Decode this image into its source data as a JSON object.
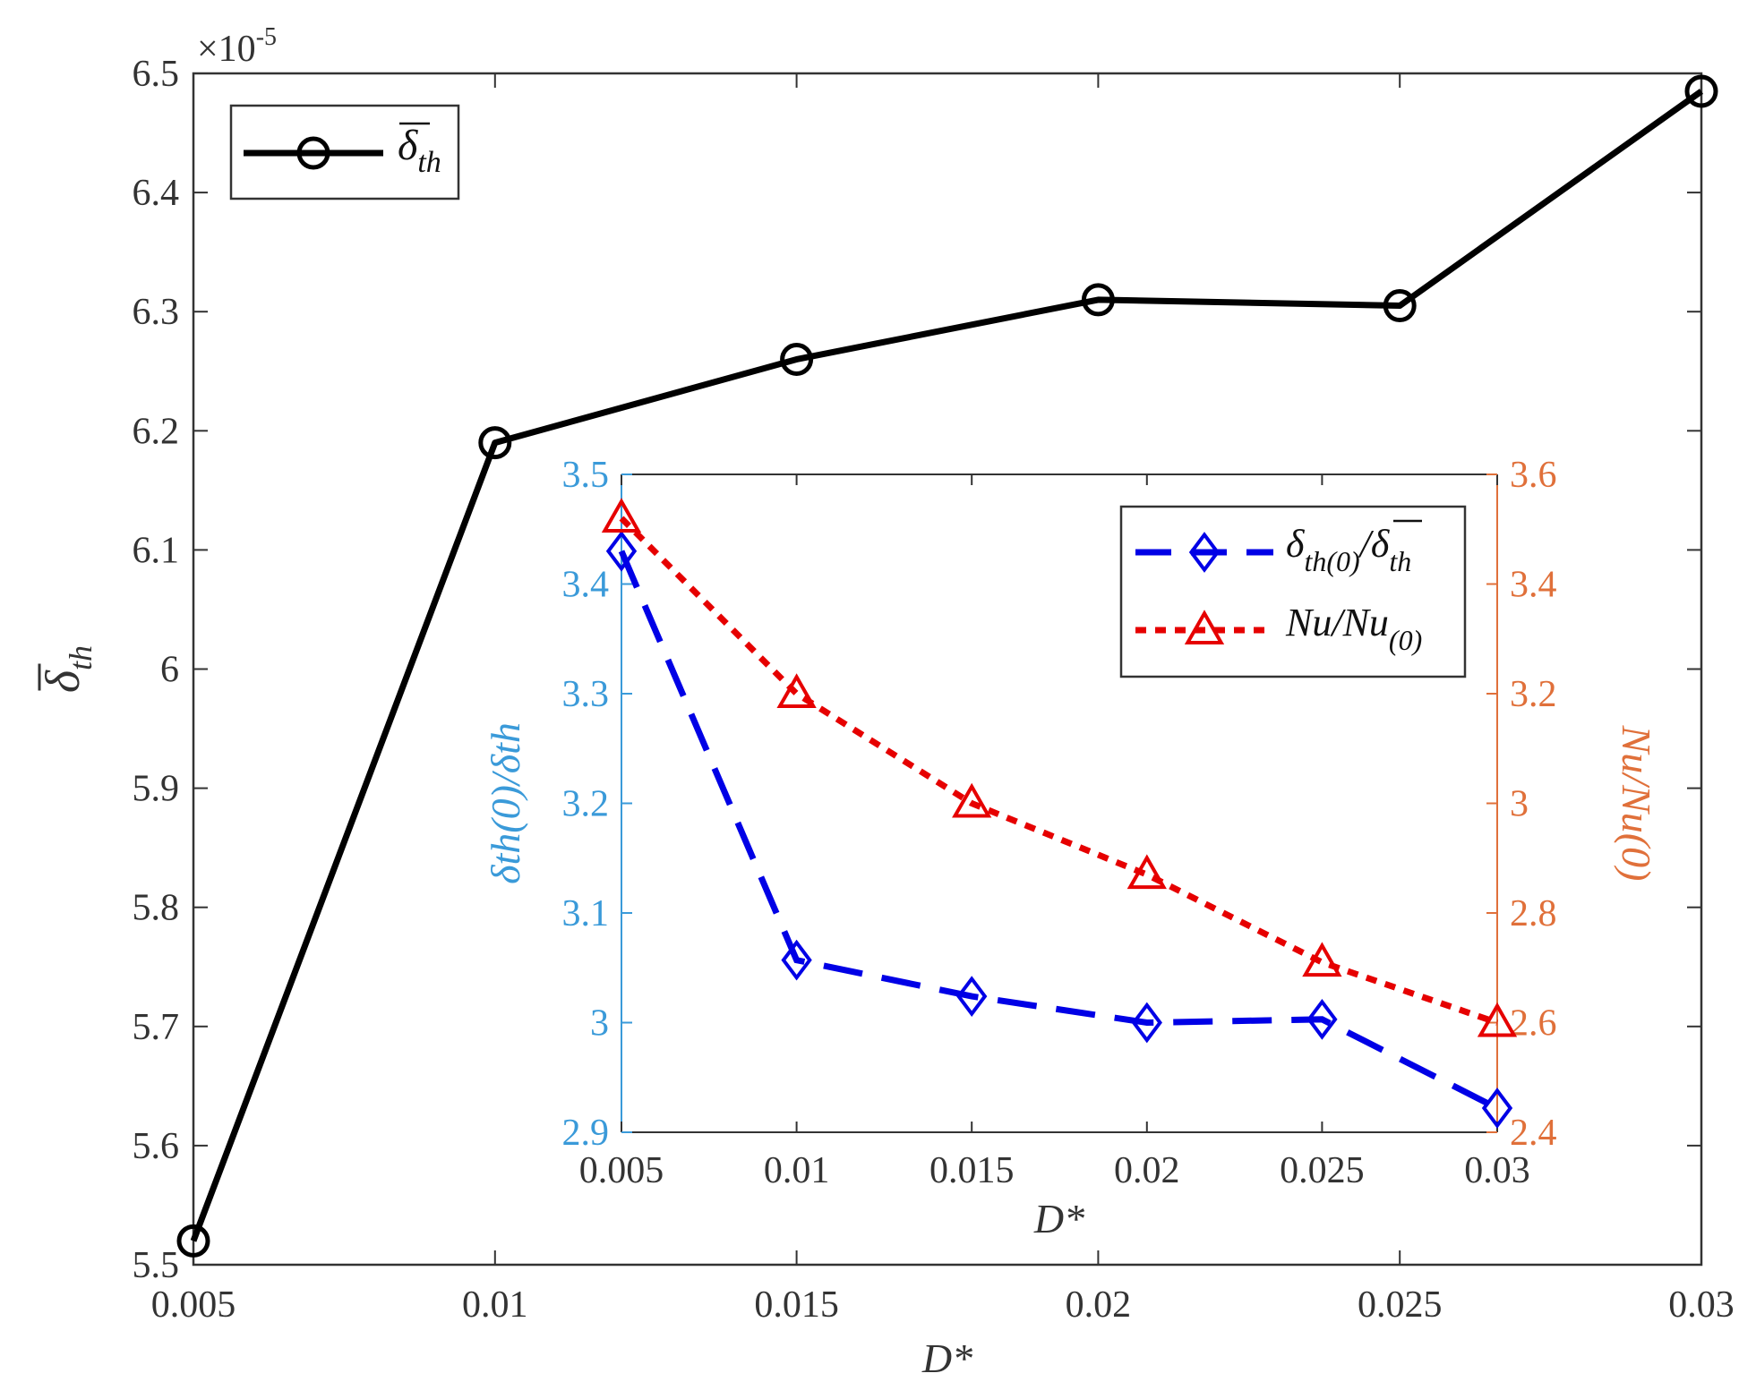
{
  "chart_data": [
    {
      "type": "line",
      "name": "main",
      "x": [
        0.005,
        0.01,
        0.015,
        0.02,
        0.025,
        0.03
      ],
      "xlim": [
        0.005,
        0.03
      ],
      "xticks": [
        0.005,
        0.01,
        0.015,
        0.02,
        0.025,
        0.03
      ],
      "xtick_labels": [
        "0.005",
        "0.01",
        "0.015",
        "0.02",
        "0.025",
        "0.03"
      ],
      "ylim": [
        5.5,
        6.5
      ],
      "yticks": [
        5.5,
        5.6,
        5.7,
        5.8,
        5.9,
        6,
        6.1,
        6.2,
        6.3,
        6.4,
        6.5
      ],
      "ytick_labels": [
        "5.5",
        "5.6",
        "5.7",
        "5.8",
        "5.9",
        "6",
        "6.1",
        "6.2",
        "6.3",
        "6.4",
        "6.5"
      ],
      "y_exponent_base": "×10",
      "y_exponent_power": "-5",
      "xlabel": "D*",
      "ylabel_main": "δ",
      "ylabel_sub": "th",
      "legend_position": "top-left",
      "series": [
        {
          "name": "δ̄_th",
          "legend_main": "δ",
          "legend_sub": "th",
          "color": "#000000",
          "marker": "circle",
          "x": [
            0.005,
            0.01,
            0.015,
            0.02,
            0.025,
            0.03
          ],
          "values": [
            5.52,
            6.19,
            6.26,
            6.31,
            6.305,
            6.485
          ]
        }
      ]
    },
    {
      "type": "line",
      "name": "inset",
      "xlim": [
        0.005,
        0.03
      ],
      "xticks": [
        0.005,
        0.01,
        0.015,
        0.02,
        0.025,
        0.03
      ],
      "xtick_labels": [
        "0.005",
        "0.01",
        "0.015",
        "0.02",
        "0.025",
        "0.03"
      ],
      "xlabel": "D*",
      "ylim_left": [
        2.9,
        3.5
      ],
      "yticks_left": [
        2.9,
        3,
        3.1,
        3.2,
        3.3,
        3.4,
        3.5
      ],
      "ytick_labels_left": [
        "2.9",
        "3",
        "3.1",
        "3.2",
        "3.3",
        "3.4",
        "3.5"
      ],
      "ylim_right": [
        2.4,
        3.6
      ],
      "yticks_right": [
        2.4,
        2.6,
        2.8,
        3,
        3.2,
        3.4,
        3.6
      ],
      "ytick_labels_right": [
        "2.4",
        "2.6",
        "2.8",
        "3",
        "3.2",
        "3.4",
        "3.6"
      ],
      "ylabel_left": "δth(0)/δth",
      "ylabel_right": "Nu/Nu(0)",
      "left_axis_color": "#3a9ad9",
      "right_axis_color": "#e0703a",
      "legend_position": "top-right",
      "series": [
        {
          "name": "δ_th(0)/δ̄_th",
          "legend_text": "δ",
          "legend_sub1": "th(0)",
          "legend_mid": "/δ",
          "legend_sub2": "th",
          "color": "#0000e6",
          "marker": "diamond",
          "linestyle": "dashed",
          "axis": "left",
          "x": [
            0.005,
            0.01,
            0.015,
            0.02,
            0.025,
            0.03
          ],
          "values": [
            3.43,
            3.057,
            3.024,
            3.0,
            3.003,
            2.922
          ]
        },
        {
          "name": "Nu/Nu_(0)",
          "legend_text": "Nu/Nu",
          "legend_sub1": "(0)",
          "color": "#e60000",
          "marker": "triangle",
          "linestyle": "dotted",
          "axis": "right",
          "x": [
            0.005,
            0.01,
            0.015,
            0.02,
            0.025,
            0.03
          ],
          "values": [
            3.52,
            3.2,
            3.0,
            2.87,
            2.71,
            2.6
          ]
        }
      ]
    }
  ]
}
